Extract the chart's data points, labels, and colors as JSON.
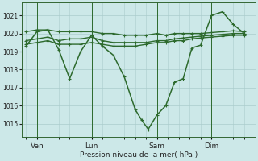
{
  "background_color": "#cce8e8",
  "grid_color": "#aacccc",
  "line_color": "#2d6a2d",
  "title": "Pression niveau de la mer( hPa )",
  "ylim": [
    1014.3,
    1021.7
  ],
  "yticks": [
    1015,
    1016,
    1017,
    1018,
    1019,
    1020,
    1021
  ],
  "xlim": [
    -0.2,
    10.5
  ],
  "day_labels": [
    "Ven",
    "Lun",
    "Sam",
    "Dim"
  ],
  "day_positions": [
    0.5,
    3.0,
    6.0,
    8.5
  ],
  "vline_positions": [
    0.5,
    3.0,
    6.0,
    8.5
  ],
  "series_main": {
    "x": [
      0.0,
      0.5,
      1.0,
      1.5,
      2.0,
      2.5,
      3.0,
      3.5,
      4.0,
      4.5,
      5.0,
      5.3,
      5.6,
      6.0,
      6.4,
      6.8,
      7.2,
      7.6,
      8.0,
      8.5,
      9.0,
      9.5,
      10.0
    ],
    "y": [
      1019.3,
      1020.1,
      1020.2,
      1019.1,
      1017.5,
      1019.0,
      1019.9,
      1019.3,
      1018.8,
      1017.6,
      1015.8,
      1015.2,
      1014.7,
      1015.5,
      1016.0,
      1017.3,
      1017.5,
      1019.2,
      1019.35,
      1021.0,
      1021.2,
      1020.5,
      1020.0
    ]
  },
  "series_flat1": {
    "x": [
      0.0,
      0.5,
      1.0,
      1.5,
      2.0,
      2.5,
      3.0,
      3.5,
      4.0,
      4.5,
      5.0,
      5.5,
      6.0,
      6.4,
      6.8,
      7.2,
      7.6,
      8.0,
      8.5,
      9.0,
      9.5,
      10.0
    ],
    "y": [
      1020.1,
      1020.2,
      1020.2,
      1020.1,
      1020.1,
      1020.1,
      1020.1,
      1020.0,
      1020.0,
      1019.9,
      1019.9,
      1019.9,
      1020.0,
      1019.9,
      1020.0,
      1020.0,
      1020.0,
      1020.0,
      1020.05,
      1020.1,
      1020.15,
      1020.1
    ]
  },
  "series_flat2": {
    "x": [
      0.0,
      0.5,
      1.0,
      1.5,
      2.0,
      2.5,
      3.0,
      3.5,
      4.0,
      4.5,
      5.0,
      5.5,
      6.0,
      6.4,
      6.8,
      7.2,
      7.6,
      8.0,
      8.5,
      9.0,
      9.5,
      10.0
    ],
    "y": [
      1019.6,
      1019.7,
      1019.8,
      1019.6,
      1019.7,
      1019.7,
      1019.8,
      1019.6,
      1019.5,
      1019.5,
      1019.5,
      1019.5,
      1019.6,
      1019.6,
      1019.7,
      1019.75,
      1019.8,
      1019.85,
      1019.9,
      1019.95,
      1020.0,
      1020.0
    ]
  },
  "series_flat3": {
    "x": [
      0.0,
      0.5,
      1.0,
      1.5,
      2.0,
      2.5,
      3.0,
      3.5,
      4.0,
      4.5,
      5.0,
      5.5,
      6.0,
      6.4,
      6.8,
      7.2,
      7.6,
      8.0,
      8.5,
      9.0,
      9.5,
      10.0
    ],
    "y": [
      1019.4,
      1019.5,
      1019.6,
      1019.4,
      1019.4,
      1019.4,
      1019.5,
      1019.4,
      1019.3,
      1019.3,
      1019.3,
      1019.4,
      1019.5,
      1019.5,
      1019.6,
      1019.6,
      1019.7,
      1019.75,
      1019.8,
      1019.85,
      1019.9,
      1019.9
    ]
  },
  "marker": "+",
  "markersize": 3.5,
  "linewidth_main": 1.1,
  "linewidth_flat": 1.0
}
